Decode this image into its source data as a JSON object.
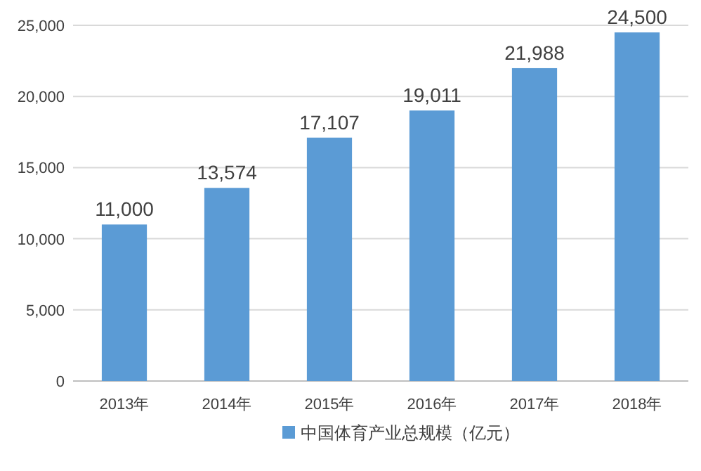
{
  "chart_data": {
    "type": "bar",
    "categories": [
      "2013年",
      "2014年",
      "2015年",
      "2016年",
      "2017年",
      "2018年"
    ],
    "series": [
      {
        "name": "中国体育产业总规模（亿元）",
        "color": "#5b9bd5",
        "values": [
          11000,
          13574,
          17107,
          19011,
          21988,
          24500
        ],
        "value_labels": [
          "11,000",
          "13,574",
          "17,107",
          "19,011",
          "21,988",
          "24,500"
        ]
      }
    ],
    "ylim": [
      0,
      25000
    ],
    "yticks": [
      {
        "value": 0,
        "label": "0"
      },
      {
        "value": 5000,
        "label": "5,000"
      },
      {
        "value": 10000,
        "label": "10,000"
      },
      {
        "value": 15000,
        "label": "15,000"
      },
      {
        "value": 20000,
        "label": "20,000"
      },
      {
        "value": 25000,
        "label": "25,000"
      }
    ],
    "grid": "y",
    "legend": "bottom"
  }
}
